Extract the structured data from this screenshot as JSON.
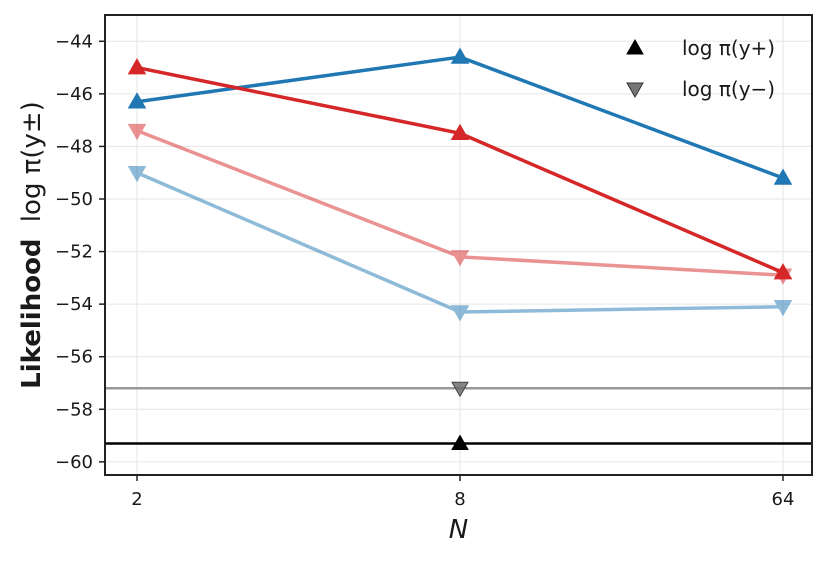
{
  "chart_data": {
    "type": "line",
    "title": "",
    "xlabel": "N",
    "ylabel_bold": "Likelihood",
    "ylabel_math": "log π(y±)",
    "categories": [
      "2",
      "8",
      "64"
    ],
    "ylim": [
      -60.5,
      -43
    ],
    "yticks": [
      -44,
      -46,
      -48,
      -50,
      -52,
      -54,
      -56,
      -58,
      -60
    ],
    "ytick_labels": [
      "−44",
      "−46",
      "−48",
      "−50",
      "−52",
      "−54",
      "−56",
      "−58",
      "−60"
    ],
    "grid": true,
    "legend_position": "top-right",
    "legend": [
      {
        "label": "log π(y+)",
        "marker": "triangle-up",
        "color": "#000000"
      },
      {
        "label": "log π(y−)",
        "marker": "triangle-down",
        "color": "#555555"
      }
    ],
    "series": [
      {
        "values": [
          -46.3,
          -44.6,
          -49.2
        ],
        "color": "#1f77b4",
        "marker": "triangle-up",
        "opacity": 1
      },
      {
        "values": [
          -45.0,
          -47.5,
          -52.8
        ],
        "color": "#d62728",
        "marker": "triangle-up",
        "opacity": 1
      },
      {
        "values": [
          -47.4,
          -52.2,
          -52.9
        ],
        "color": "#d62728",
        "marker": "triangle-down",
        "opacity": 0.5
      },
      {
        "values": [
          -49.0,
          -54.3,
          -54.1
        ],
        "color": "#1f77b4",
        "marker": "triangle-down",
        "opacity": 0.5
      }
    ],
    "reference_lines": [
      {
        "value": -57.2,
        "color": "#999999",
        "marker": "triangle-down",
        "marker_category": "8"
      },
      {
        "value": -59.3,
        "color": "#000000",
        "marker": "triangle-up",
        "marker_category": "8"
      }
    ]
  }
}
